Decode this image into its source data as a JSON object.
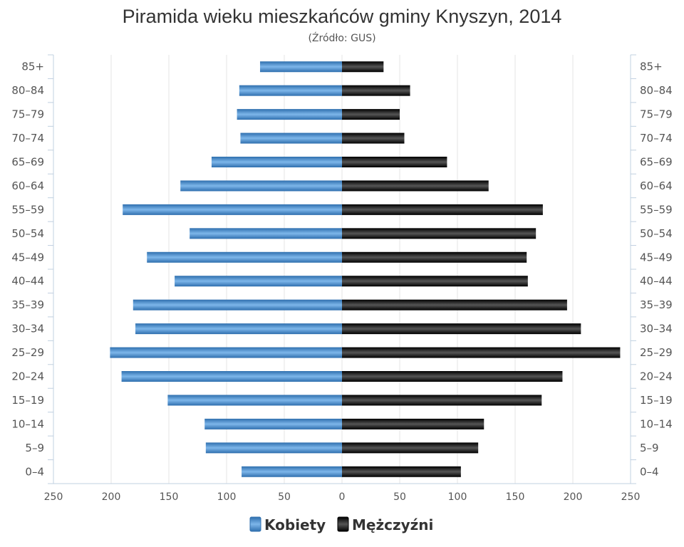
{
  "chart_data": {
    "type": "bar",
    "orientation": "horizontal-pyramid",
    "title": "Piramida wieku mieszkańców gminy Knyszyn, 2014",
    "subtitle": "(Źródło: GUS)",
    "categories": [
      "85+",
      "80-84",
      "75-79",
      "70-74",
      "65-69",
      "60-64",
      "55-59",
      "50-54",
      "45-49",
      "40-44",
      "35-39",
      "30-34",
      "25-29",
      "20-24",
      "15-19",
      "10-14",
      "5-9",
      "0-4"
    ],
    "series": [
      {
        "name": "Kobiety",
        "color": "#4a8fcf",
        "values": [
          71,
          89,
          91,
          88,
          113,
          140,
          190,
          132,
          169,
          145,
          181,
          179,
          201,
          191,
          151,
          119,
          118,
          87
        ]
      },
      {
        "name": "Mężczyźni",
        "color": "#1a1a1a",
        "values": [
          36,
          59,
          50,
          54,
          91,
          127,
          174,
          168,
          160,
          161,
          195,
          207,
          241,
          191,
          173,
          123,
          118,
          103
        ]
      }
    ],
    "xlim": [
      -250,
      250
    ],
    "xticks": [
      "250",
      "200",
      "150",
      "100",
      "50",
      "0",
      "50",
      "100",
      "150",
      "200",
      "250"
    ],
    "grid": true,
    "legend_position": "bottom-center"
  }
}
